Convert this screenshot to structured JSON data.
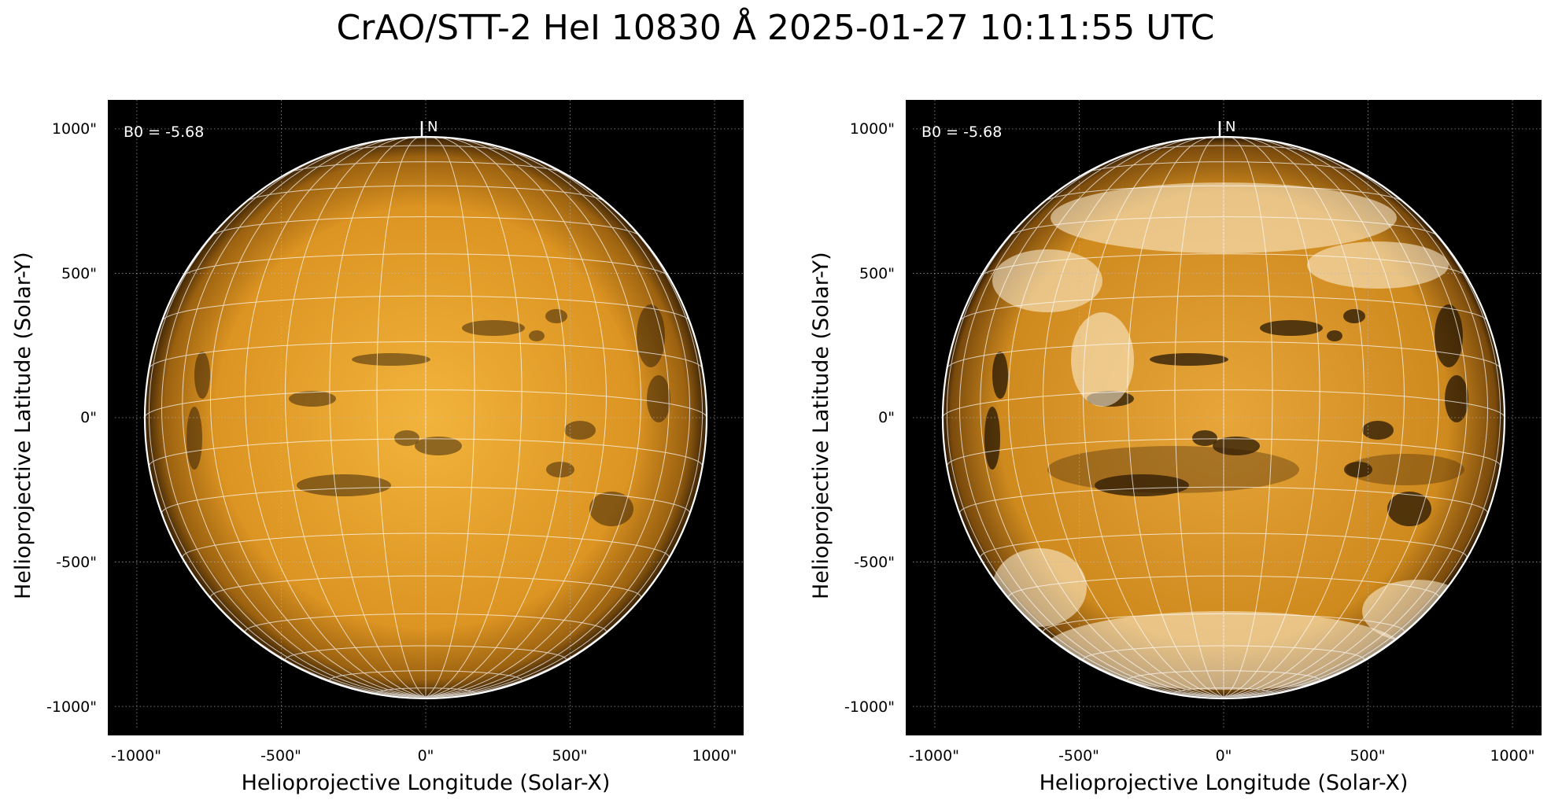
{
  "title": "CrAO/STT-2 HeI 10830 Å 2025-01-27 10:11:55 UTC",
  "colors": {
    "disk": "#d9921a",
    "background": "#000000",
    "grid": "#ffffff"
  },
  "panels": [
    {
      "annotation": "B0 = -5.68",
      "north_marker": "N",
      "xlabel": "Helioprojective Longitude (Solar-X)",
      "ylabel": "Helioprojective Latitude (Solar-Y)",
      "xticks": [
        "-1000\"",
        "-500\"",
        "0\"",
        "500\"",
        "1000\""
      ],
      "yticks": [
        "1000\"",
        "500\"",
        "0\"",
        "-500\"",
        "-1000\""
      ],
      "style": "normal"
    },
    {
      "annotation": "B0 = -5.68",
      "north_marker": "N",
      "xlabel": "Helioprojective Longitude (Solar-X)",
      "ylabel": "Helioprojective Latitude (Solar-Y)",
      "xticks": [
        "-1000\"",
        "-500\"",
        "0\"",
        "500\"",
        "1000\""
      ],
      "yticks": [
        "1000\"",
        "500\"",
        "0\"",
        "-500\"",
        "-1000\""
      ],
      "style": "enhanced"
    }
  ]
}
